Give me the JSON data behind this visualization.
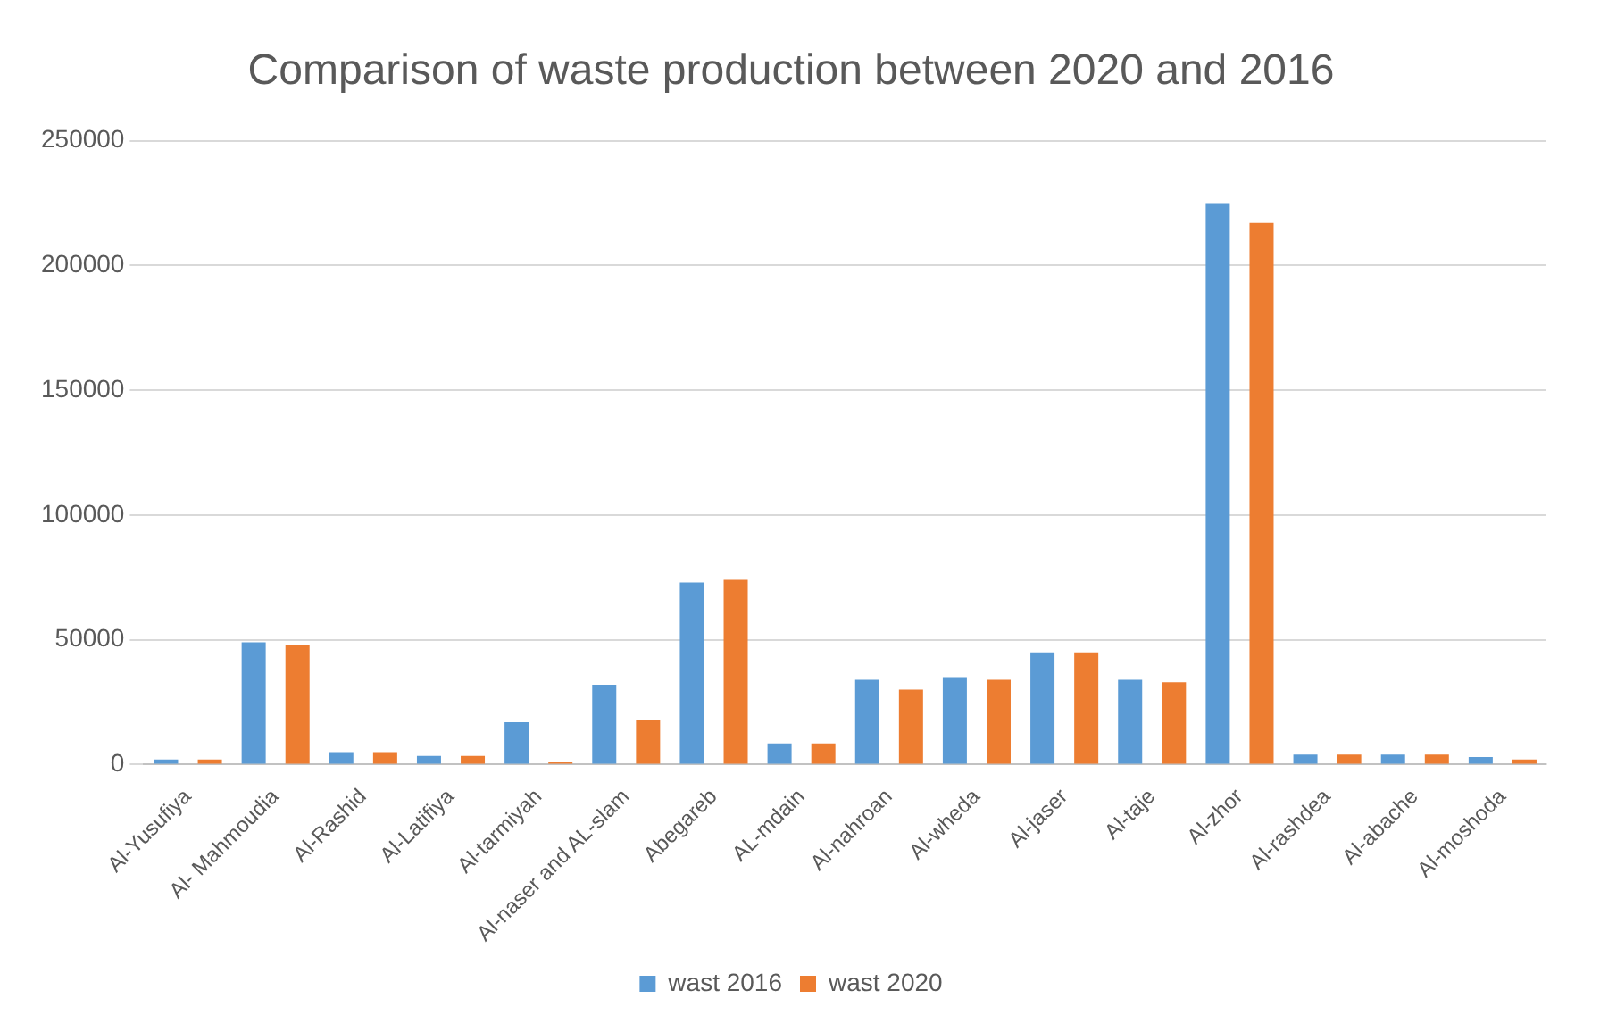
{
  "chart_data": {
    "type": "bar",
    "title": "Comparison of waste production between 2020 and 2016",
    "categories": [
      "Al-Yusufiya",
      "Al- Mahmoudia",
      "Al-Rashid",
      "Al-Latifiya",
      "Al-tarmiyah",
      "Al-naser and AL-slam",
      "Abegareb",
      "AL-mdain",
      "Al-nahroan",
      "Al-wheda",
      "Al-jaser",
      "Al-taje",
      "Al-zhor",
      "Al-rashdea",
      "Al-abache",
      "Al-moshoda"
    ],
    "series": [
      {
        "name": "wast 2016",
        "color": "#5b9bd5",
        "values": [
          2000,
          49000,
          5000,
          3500,
          17000,
          32000,
          73000,
          8500,
          34000,
          35000,
          45000,
          34000,
          225000,
          4000,
          4000,
          3000
        ]
      },
      {
        "name": "wast 2020",
        "color": "#ed7d31",
        "values": [
          2000,
          48000,
          5000,
          3500,
          1000,
          18000,
          74000,
          8500,
          30000,
          34000,
          45000,
          33000,
          217000,
          4000,
          4000,
          2000
        ]
      }
    ],
    "ylim": [
      0,
      250000
    ],
    "yticks": [
      0,
      50000,
      100000,
      150000,
      200000,
      250000
    ],
    "grid": "y",
    "legend": "bottom"
  }
}
